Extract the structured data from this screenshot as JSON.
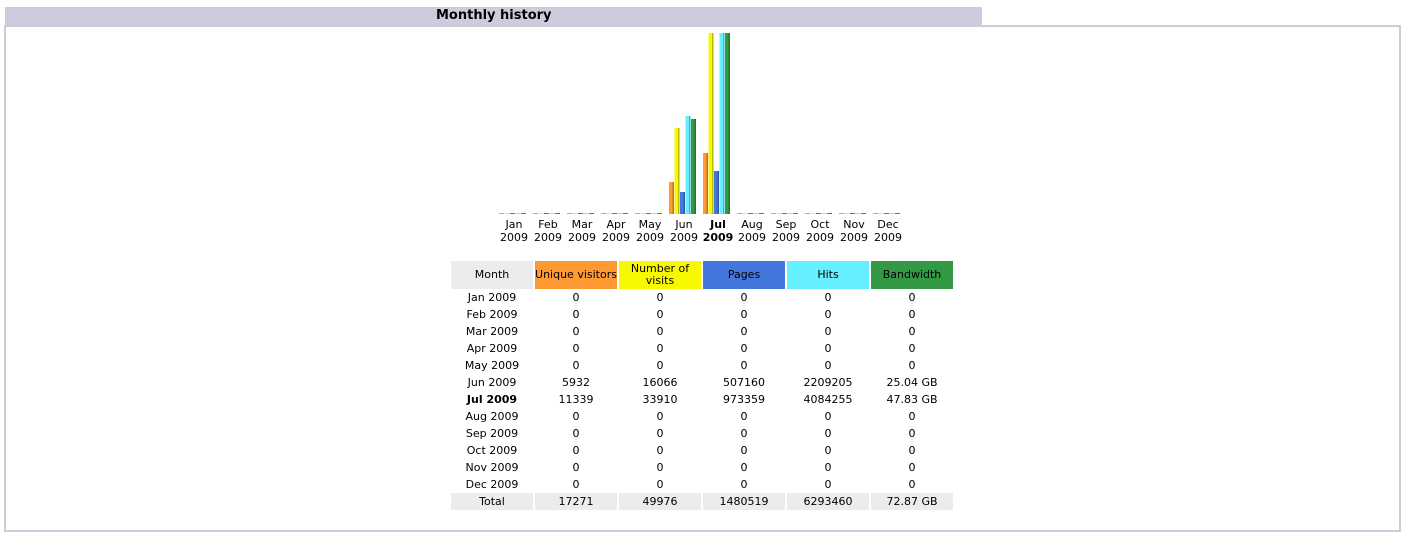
{
  "section_title": "Monthly history",
  "colors": {
    "unique_visitors": "#ff9933",
    "visits": "#f8f800",
    "pages": "#4477dd",
    "hits": "#66f0ff",
    "bandwidth": "#339944"
  },
  "table": {
    "headers": {
      "month": "Month",
      "unique_visitors": "Unique visitors",
      "visits": "Number of visits",
      "pages": "Pages",
      "hits": "Hits",
      "bandwidth": "Bandwidth"
    },
    "rows": [
      {
        "month": "Jan 2009",
        "uv": "0",
        "v": "0",
        "p": "0",
        "h": "0",
        "bw": "0"
      },
      {
        "month": "Feb 2009",
        "uv": "0",
        "v": "0",
        "p": "0",
        "h": "0",
        "bw": "0"
      },
      {
        "month": "Mar 2009",
        "uv": "0",
        "v": "0",
        "p": "0",
        "h": "0",
        "bw": "0"
      },
      {
        "month": "Apr 2009",
        "uv": "0",
        "v": "0",
        "p": "0",
        "h": "0",
        "bw": "0"
      },
      {
        "month": "May 2009",
        "uv": "0",
        "v": "0",
        "p": "0",
        "h": "0",
        "bw": "0"
      },
      {
        "month": "Jun 2009",
        "uv": "5932",
        "v": "16066",
        "p": "507160",
        "h": "2209205",
        "bw": "25.04 GB"
      },
      {
        "month": "Jul 2009",
        "uv": "11339",
        "v": "33910",
        "p": "973359",
        "h": "4084255",
        "bw": "47.83 GB",
        "current": true
      },
      {
        "month": "Aug 2009",
        "uv": "0",
        "v": "0",
        "p": "0",
        "h": "0",
        "bw": "0"
      },
      {
        "month": "Sep 2009",
        "uv": "0",
        "v": "0",
        "p": "0",
        "h": "0",
        "bw": "0"
      },
      {
        "month": "Oct 2009",
        "uv": "0",
        "v": "0",
        "p": "0",
        "h": "0",
        "bw": "0"
      },
      {
        "month": "Nov 2009",
        "uv": "0",
        "v": "0",
        "p": "0",
        "h": "0",
        "bw": "0"
      },
      {
        "month": "Dec 2009",
        "uv": "0",
        "v": "0",
        "p": "0",
        "h": "0",
        "bw": "0"
      }
    ],
    "total": {
      "month": "Total",
      "uv": "17271",
      "v": "49976",
      "p": "1480519",
      "h": "6293460",
      "bw": "72.87 GB"
    }
  },
  "chart_data": {
    "type": "bar",
    "categories": [
      {
        "month": "Jan",
        "year": "2009"
      },
      {
        "month": "Feb",
        "year": "2009"
      },
      {
        "month": "Mar",
        "year": "2009"
      },
      {
        "month": "Apr",
        "year": "2009"
      },
      {
        "month": "May",
        "year": "2009"
      },
      {
        "month": "Jun",
        "year": "2009"
      },
      {
        "month": "Jul",
        "year": "2009",
        "current": true
      },
      {
        "month": "Aug",
        "year": "2009"
      },
      {
        "month": "Sep",
        "year": "2009"
      },
      {
        "month": "Oct",
        "year": "2009"
      },
      {
        "month": "Nov",
        "year": "2009"
      },
      {
        "month": "Dec",
        "year": "2009"
      }
    ],
    "series": [
      {
        "name": "Unique visitors",
        "color": "#ff9933",
        "scale_group": "visits",
        "values": [
          0,
          0,
          0,
          0,
          0,
          5932,
          11339,
          0,
          0,
          0,
          0,
          0
        ]
      },
      {
        "name": "Number of visits",
        "color": "#f8f800",
        "scale_group": "visits",
        "values": [
          0,
          0,
          0,
          0,
          0,
          16066,
          33910,
          0,
          0,
          0,
          0,
          0
        ]
      },
      {
        "name": "Pages",
        "color": "#4477dd",
        "scale_group": "hits",
        "values": [
          0,
          0,
          0,
          0,
          0,
          507160,
          973359,
          0,
          0,
          0,
          0,
          0
        ]
      },
      {
        "name": "Hits",
        "color": "#66f0ff",
        "scale_group": "hits",
        "values": [
          0,
          0,
          0,
          0,
          0,
          2209205,
          4084255,
          0,
          0,
          0,
          0,
          0
        ]
      },
      {
        "name": "Bandwidth",
        "color": "#339944",
        "scale_group": "bandwidth",
        "values": [
          0,
          0,
          0,
          0,
          0,
          25.04,
          47.83,
          0,
          0,
          0,
          0,
          0
        ],
        "unit": "GB"
      }
    ],
    "grid": false,
    "legend": "none"
  }
}
